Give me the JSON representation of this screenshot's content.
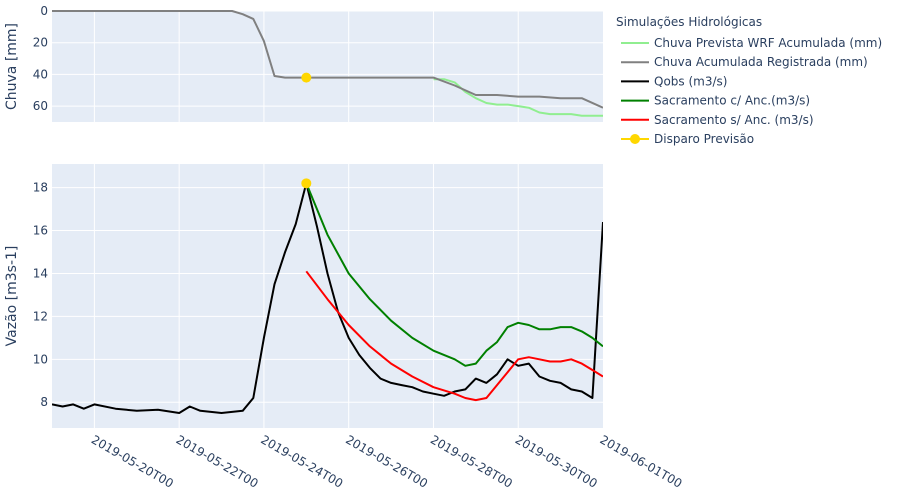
{
  "chart_data": [
    {
      "type": "line",
      "ylabel": "Chuva [mm]",
      "y_reversed": true,
      "ylim": [
        0,
        70
      ],
      "y_ticks": [
        0,
        20,
        40,
        60
      ],
      "xlim": [
        "2019-05-19T00",
        "2019-06-01T00"
      ],
      "series": [
        {
          "name": "Chuva Prevista WRF Acumulada (mm)",
          "color": "#90ee90",
          "x": [
            "2019-05-28T00",
            "2019-05-28T06",
            "2019-05-28T12",
            "2019-05-28T18",
            "2019-05-29T00",
            "2019-05-29T06",
            "2019-05-29T12",
            "2019-05-29T18",
            "2019-05-30T00",
            "2019-05-30T06",
            "2019-05-30T12",
            "2019-05-30T18",
            "2019-05-31T00",
            "2019-05-31T06",
            "2019-05-31T12",
            "2019-05-31T18",
            "2019-06-01T00"
          ],
          "y": [
            43,
            43,
            45,
            51,
            55,
            58,
            59,
            59,
            60,
            61,
            64,
            65,
            65,
            65,
            66,
            66,
            66
          ]
        },
        {
          "name": "Chuva Acumulada Registrada (mm)",
          "color": "#808080",
          "x": [
            "2019-05-19T00",
            "2019-05-20T00",
            "2019-05-21T00",
            "2019-05-22T00",
            "2019-05-23T00",
            "2019-05-23T06",
            "2019-05-23T12",
            "2019-05-23T18",
            "2019-05-24T00",
            "2019-05-24T06",
            "2019-05-24T12",
            "2019-05-25T00",
            "2019-05-26T00",
            "2019-05-27T00",
            "2019-05-28T00",
            "2019-05-28T12",
            "2019-05-29T00",
            "2019-05-29T12",
            "2019-05-30T00",
            "2019-05-30T12",
            "2019-05-31T00",
            "2019-05-31T12",
            "2019-06-01T00"
          ],
          "y": [
            0,
            0,
            0,
            0,
            0,
            0,
            2,
            5,
            19,
            41,
            42,
            42,
            42,
            42,
            42,
            47,
            53,
            53,
            54,
            54,
            55,
            55,
            61
          ]
        },
        {
          "name": "Disparo Previsão",
          "color": "#ffd700",
          "mode": "marker",
          "x": [
            "2019-05-25T00"
          ],
          "y": [
            42
          ]
        }
      ]
    },
    {
      "type": "line",
      "ylabel": "Vazão [m3s-1]",
      "ylim": [
        6.8,
        19.1
      ],
      "y_ticks": [
        8,
        10,
        12,
        14,
        16,
        18
      ],
      "xlim": [
        "2019-05-19T00",
        "2019-06-01T00"
      ],
      "x_ticks": [
        "2019-05-20T00",
        "2019-05-22T00",
        "2019-05-24T00",
        "2019-05-26T00",
        "2019-05-28T00",
        "2019-05-30T00",
        "2019-06-01T00"
      ],
      "series": [
        {
          "name": "Qobs (m3/s)",
          "color": "#000000",
          "x": [
            "2019-05-19T00",
            "2019-05-19T06",
            "2019-05-19T12",
            "2019-05-19T18",
            "2019-05-20T00",
            "2019-05-20T12",
            "2019-05-21T00",
            "2019-05-21T12",
            "2019-05-22T00",
            "2019-05-22T06",
            "2019-05-22T12",
            "2019-05-23T00",
            "2019-05-23T12",
            "2019-05-23T18",
            "2019-05-24T00",
            "2019-05-24T06",
            "2019-05-24T12",
            "2019-05-24T18",
            "2019-05-25T00",
            "2019-05-25T06",
            "2019-05-25T12",
            "2019-05-25T18",
            "2019-05-26T00",
            "2019-05-26T06",
            "2019-05-26T12",
            "2019-05-26T18",
            "2019-05-27T00",
            "2019-05-27T06",
            "2019-05-27T12",
            "2019-05-27T18",
            "2019-05-28T00",
            "2019-05-28T06",
            "2019-05-28T12",
            "2019-05-28T18",
            "2019-05-29T00",
            "2019-05-29T06",
            "2019-05-29T12",
            "2019-05-29T18",
            "2019-05-30T00",
            "2019-05-30T06",
            "2019-05-30T12",
            "2019-05-30T18",
            "2019-05-31T00",
            "2019-05-31T06",
            "2019-05-31T12",
            "2019-05-31T18",
            "2019-06-01T00"
          ],
          "y": [
            7.9,
            7.8,
            7.9,
            7.7,
            7.9,
            7.7,
            7.6,
            7.65,
            7.5,
            7.8,
            7.6,
            7.5,
            7.6,
            8.2,
            11.0,
            13.5,
            15.0,
            16.3,
            18.2,
            16.2,
            14.0,
            12.2,
            11.0,
            10.2,
            9.6,
            9.1,
            8.9,
            8.8,
            8.7,
            8.5,
            8.4,
            8.3,
            8.5,
            8.6,
            9.1,
            8.9,
            9.3,
            10.0,
            9.7,
            9.8,
            9.2,
            9.0,
            8.9,
            8.6,
            8.5,
            8.2,
            16.4
          ]
        },
        {
          "name": "Sacramento c/ Anc.(m3/s)",
          "color": "#008000",
          "x": [
            "2019-05-25T00",
            "2019-05-25T12",
            "2019-05-26T00",
            "2019-05-26T12",
            "2019-05-27T00",
            "2019-05-27T12",
            "2019-05-28T00",
            "2019-05-28T12",
            "2019-05-28T18",
            "2019-05-29T00",
            "2019-05-29T06",
            "2019-05-29T12",
            "2019-05-29T18",
            "2019-05-30T00",
            "2019-05-30T06",
            "2019-05-30T12",
            "2019-05-30T18",
            "2019-05-31T00",
            "2019-05-31T06",
            "2019-05-31T12",
            "2019-05-31T18",
            "2019-06-01T00"
          ],
          "y": [
            18.2,
            15.8,
            14.0,
            12.8,
            11.8,
            11.0,
            10.4,
            10.0,
            9.7,
            9.8,
            10.4,
            10.8,
            11.5,
            11.7,
            11.6,
            11.4,
            11.4,
            11.5,
            11.5,
            11.3,
            11.0,
            10.6
          ]
        },
        {
          "name": "Sacramento s/ Anc. (m3/s)",
          "color": "#ff0000",
          "x": [
            "2019-05-25T00",
            "2019-05-25T12",
            "2019-05-26T00",
            "2019-05-26T12",
            "2019-05-27T00",
            "2019-05-27T12",
            "2019-05-28T00",
            "2019-05-28T12",
            "2019-05-28T18",
            "2019-05-29T00",
            "2019-05-29T06",
            "2019-05-29T12",
            "2019-05-29T18",
            "2019-05-30T00",
            "2019-05-30T06",
            "2019-05-30T12",
            "2019-05-30T18",
            "2019-05-31T00",
            "2019-05-31T06",
            "2019-05-31T12",
            "2019-05-31T18",
            "2019-06-01T00"
          ],
          "y": [
            14.1,
            12.8,
            11.6,
            10.6,
            9.8,
            9.2,
            8.7,
            8.4,
            8.2,
            8.1,
            8.2,
            8.8,
            9.4,
            10.0,
            10.1,
            10.0,
            9.9,
            9.9,
            10.0,
            9.8,
            9.5,
            9.2
          ]
        },
        {
          "name": "Disparo Previsão",
          "color": "#ffd700",
          "mode": "marker",
          "x": [
            "2019-05-25T00"
          ],
          "y": [
            18.2
          ]
        }
      ]
    }
  ],
  "legend": {
    "title": "Simulações Hidrológicas",
    "position": "right",
    "items": [
      {
        "label": "Chuva Prevista WRF Acumulada (mm)",
        "color": "#90ee90",
        "type": "line"
      },
      {
        "label": "Chuva Acumulada Registrada (mm)",
        "color": "#808080",
        "type": "line"
      },
      {
        "label": "Qobs (m3/s)",
        "color": "#000000",
        "type": "line"
      },
      {
        "label": "Sacramento c/ Anc.(m3/s)",
        "color": "#008000",
        "type": "line"
      },
      {
        "label": "Sacramento s/ Anc. (m3/s)",
        "color": "#ff0000",
        "type": "line"
      },
      {
        "label": "Disparo Previsão",
        "color": "#ffd700",
        "type": "line-marker"
      }
    ]
  }
}
